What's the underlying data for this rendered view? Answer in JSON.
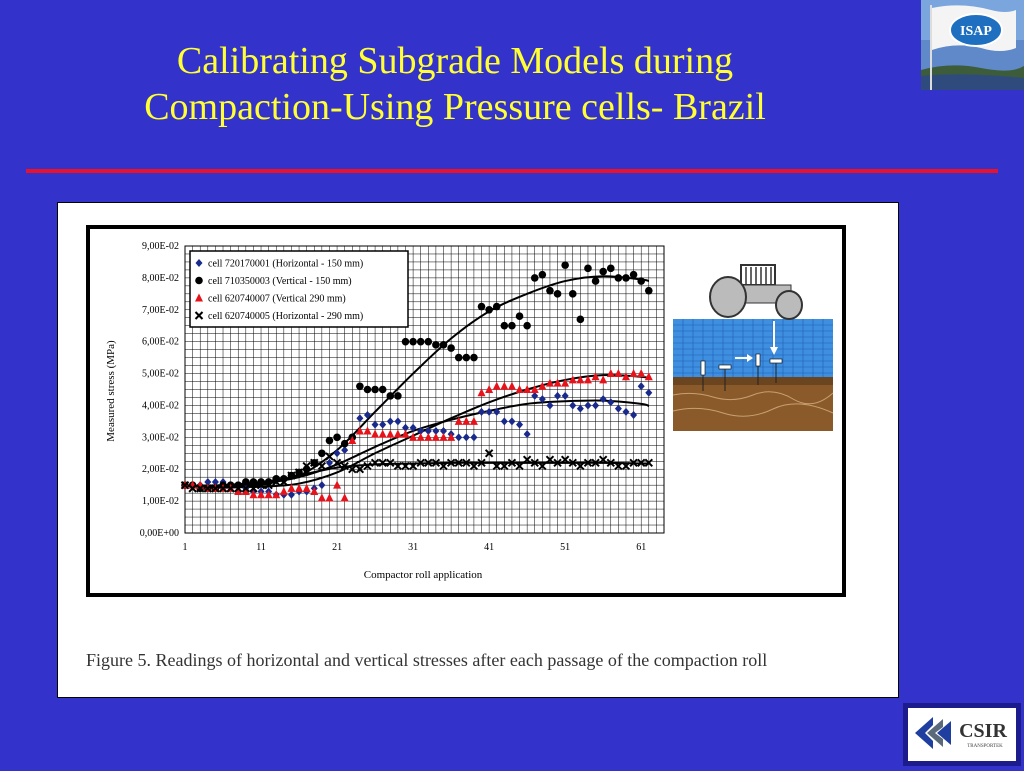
{
  "slide": {
    "title_line1": "Calibrating Subgrade Models during",
    "title_line2": "Compaction-Using Pressure cells-  Brazil",
    "caption": "Figure 5. Readings of horizontal and vertical stresses after each passage of the compaction roll",
    "logo_top": "ISAP",
    "logo_bottom": "CSIR",
    "logo_bottom_sub": "TRANSPORTEK",
    "colors": {
      "background": "#3333cc",
      "title": "#ffff33",
      "rule": "#e8132a"
    }
  },
  "chart_data": {
    "type": "scatter",
    "xlabel": "Compactor roll application",
    "ylabel": "Measured stress (MPa)",
    "xlim": [
      1,
      64
    ],
    "ylim": [
      0,
      0.09
    ],
    "x_ticks": [
      1,
      11,
      21,
      31,
      41,
      51,
      61
    ],
    "y_ticks": [
      0,
      0.01,
      0.02,
      0.03,
      0.04,
      0.05,
      0.06,
      0.07,
      0.08,
      0.09
    ],
    "y_tick_labels": [
      "0,00E+00",
      "1,00E-02",
      "2,00E-02",
      "3,00E-02",
      "4,00E-02",
      "5,00E-02",
      "6,00E-02",
      "7,00E-02",
      "8,00E-02",
      "9,00E-02"
    ],
    "grid": true,
    "legend_position": "top-left",
    "series": [
      {
        "name": "cell 720170001 (Horizontal - 150 mm)",
        "marker": "diamond",
        "color": "#1a2a8c",
        "x": [
          1,
          2,
          3,
          4,
          5,
          6,
          7,
          8,
          9,
          10,
          11,
          12,
          13,
          14,
          15,
          16,
          17,
          18,
          19,
          20,
          21,
          22,
          23,
          24,
          25,
          26,
          27,
          28,
          29,
          30,
          31,
          32,
          33,
          34,
          35,
          36,
          37,
          38,
          39,
          40,
          41,
          42,
          43,
          44,
          45,
          46,
          47,
          48,
          49,
          50,
          51,
          52,
          53,
          54,
          55,
          56,
          57,
          58,
          59,
          60,
          61,
          62
        ],
        "y": [
          0.015,
          0.015,
          0.015,
          0.016,
          0.016,
          0.016,
          0.015,
          0.015,
          0.014,
          0.013,
          0.013,
          0.013,
          0.012,
          0.012,
          0.012,
          0.013,
          0.013,
          0.014,
          0.015,
          0.022,
          0.025,
          0.026,
          0.03,
          0.036,
          0.037,
          0.034,
          0.034,
          0.035,
          0.035,
          0.033,
          0.033,
          0.032,
          0.032,
          0.032,
          0.032,
          0.031,
          0.03,
          0.03,
          0.03,
          0.038,
          0.038,
          0.038,
          0.035,
          0.035,
          0.034,
          0.031,
          0.043,
          0.042,
          0.04,
          0.043,
          0.043,
          0.04,
          0.039,
          0.04,
          0.04,
          0.042,
          0.041,
          0.039,
          0.038,
          0.037,
          0.046,
          0.044
        ],
        "trend": [
          [
            1,
            0.0148
          ],
          [
            6,
            0.0149
          ],
          [
            11,
            0.0155
          ],
          [
            16,
            0.0175
          ],
          [
            21,
            0.0215
          ],
          [
            26,
            0.027
          ],
          [
            31,
            0.032
          ],
          [
            36,
            0.0355
          ],
          [
            41,
            0.0383
          ],
          [
            46,
            0.0405
          ],
          [
            51,
            0.0413
          ],
          [
            56,
            0.0415
          ],
          [
            61,
            0.0405
          ],
          [
            62,
            0.0398
          ]
        ]
      },
      {
        "name": "cell 710350003 (Vertical - 150 mm)",
        "marker": "circle",
        "color": "#000000",
        "x": [
          1,
          2,
          3,
          4,
          5,
          6,
          7,
          8,
          9,
          10,
          11,
          12,
          13,
          14,
          15,
          16,
          17,
          18,
          19,
          20,
          21,
          22,
          23,
          24,
          25,
          26,
          27,
          28,
          29,
          30,
          31,
          32,
          33,
          34,
          35,
          36,
          37,
          38,
          39,
          40,
          41,
          42,
          43,
          44,
          45,
          46,
          47,
          48,
          49,
          50,
          51,
          52,
          53,
          54,
          55,
          56,
          57,
          58,
          59,
          60,
          61,
          62
        ],
        "y": [
          0.015,
          0.015,
          0.014,
          0.014,
          0.014,
          0.015,
          0.015,
          0.015,
          0.016,
          0.016,
          0.016,
          0.016,
          0.017,
          0.017,
          0.018,
          0.019,
          0.02,
          0.022,
          0.025,
          0.029,
          0.03,
          0.028,
          0.03,
          0.046,
          0.045,
          0.045,
          0.045,
          0.043,
          0.043,
          0.06,
          0.06,
          0.06,
          0.06,
          0.059,
          0.059,
          0.058,
          0.055,
          0.055,
          0.055,
          0.071,
          0.07,
          0.071,
          0.065,
          0.065,
          0.068,
          0.065,
          0.08,
          0.081,
          0.076,
          0.075,
          0.084,
          0.075,
          0.067,
          0.083,
          0.079,
          0.082,
          0.083,
          0.08,
          0.08,
          0.081,
          0.079,
          0.076
        ],
        "trend": [
          [
            1,
            0.0148
          ],
          [
            6,
            0.015
          ],
          [
            11,
            0.016
          ],
          [
            16,
            0.018
          ],
          [
            21,
            0.026
          ],
          [
            26,
            0.038
          ],
          [
            31,
            0.05
          ],
          [
            36,
            0.061
          ],
          [
            41,
            0.0695
          ],
          [
            46,
            0.075
          ],
          [
            51,
            0.079
          ],
          [
            56,
            0.0805
          ],
          [
            61,
            0.0795
          ],
          [
            62,
            0.079
          ]
        ]
      },
      {
        "name": "cell 620740007 (Vertical 290 mm)",
        "marker": "triangle",
        "color": "#e8131a",
        "x": [
          1,
          2,
          3,
          4,
          5,
          6,
          7,
          8,
          9,
          10,
          11,
          12,
          13,
          14,
          15,
          16,
          17,
          18,
          19,
          20,
          21,
          22,
          23,
          24,
          25,
          26,
          27,
          28,
          29,
          30,
          31,
          32,
          33,
          34,
          35,
          36,
          37,
          38,
          39,
          40,
          41,
          42,
          43,
          44,
          45,
          46,
          47,
          48,
          49,
          50,
          51,
          52,
          53,
          54,
          55,
          56,
          57,
          58,
          59,
          60,
          61,
          62
        ],
        "y": [
          0.015,
          0.015,
          0.015,
          0.014,
          0.014,
          0.014,
          0.014,
          0.013,
          0.013,
          0.012,
          0.012,
          0.012,
          0.012,
          0.013,
          0.014,
          0.014,
          0.014,
          0.013,
          0.011,
          0.011,
          0.015,
          0.011,
          0.029,
          0.032,
          0.032,
          0.031,
          0.031,
          0.031,
          0.031,
          0.031,
          0.03,
          0.03,
          0.03,
          0.03,
          0.03,
          0.03,
          0.035,
          0.035,
          0.035,
          0.044,
          0.045,
          0.046,
          0.046,
          0.046,
          0.045,
          0.045,
          0.045,
          0.046,
          0.047,
          0.047,
          0.047,
          0.048,
          0.048,
          0.048,
          0.049,
          0.048,
          0.05,
          0.05,
          0.049,
          0.05,
          0.05,
          0.049
        ],
        "trend": [
          [
            1,
            0.0148
          ],
          [
            6,
            0.0145
          ],
          [
            11,
            0.0145
          ],
          [
            16,
            0.0155
          ],
          [
            21,
            0.019
          ],
          [
            26,
            0.025
          ],
          [
            31,
            0.0305
          ],
          [
            36,
            0.036
          ],
          [
            41,
            0.041
          ],
          [
            46,
            0.045
          ],
          [
            51,
            0.048
          ],
          [
            56,
            0.0495
          ],
          [
            61,
            0.049
          ],
          [
            62,
            0.0485
          ]
        ]
      },
      {
        "name": "cell 620740005 (Horizontal - 290 mm)",
        "marker": "x",
        "color": "#000000",
        "x": [
          1,
          2,
          3,
          4,
          5,
          6,
          7,
          8,
          9,
          10,
          11,
          12,
          13,
          14,
          15,
          16,
          17,
          18,
          19,
          20,
          21,
          22,
          23,
          24,
          25,
          26,
          27,
          28,
          29,
          30,
          31,
          32,
          33,
          34,
          35,
          36,
          37,
          38,
          39,
          40,
          41,
          42,
          43,
          44,
          45,
          46,
          47,
          48,
          49,
          50,
          51,
          52,
          53,
          54,
          55,
          56,
          57,
          58,
          59,
          60,
          61,
          62
        ],
        "y": [
          0.015,
          0.014,
          0.014,
          0.014,
          0.014,
          0.014,
          0.014,
          0.014,
          0.014,
          0.014,
          0.015,
          0.015,
          0.016,
          0.016,
          0.018,
          0.019,
          0.021,
          0.022,
          0.021,
          0.024,
          0.022,
          0.021,
          0.02,
          0.02,
          0.021,
          0.022,
          0.022,
          0.022,
          0.021,
          0.021,
          0.021,
          0.022,
          0.022,
          0.022,
          0.021,
          0.022,
          0.022,
          0.022,
          0.021,
          0.022,
          0.025,
          0.021,
          0.021,
          0.022,
          0.021,
          0.023,
          0.022,
          0.021,
          0.023,
          0.022,
          0.023,
          0.022,
          0.021,
          0.022,
          0.022,
          0.023,
          0.022,
          0.021,
          0.021,
          0.022,
          0.022,
          0.022
        ],
        "trend": [
          [
            1,
            0.0148
          ],
          [
            6,
            0.0142
          ],
          [
            11,
            0.015
          ],
          [
            16,
            0.018
          ],
          [
            21,
            0.0205
          ],
          [
            26,
            0.0215
          ],
          [
            31,
            0.0218
          ],
          [
            36,
            0.022
          ],
          [
            41,
            0.022
          ],
          [
            46,
            0.022
          ],
          [
            51,
            0.022
          ],
          [
            56,
            0.022
          ],
          [
            61,
            0.0218
          ],
          [
            62,
            0.0218
          ]
        ]
      }
    ]
  }
}
